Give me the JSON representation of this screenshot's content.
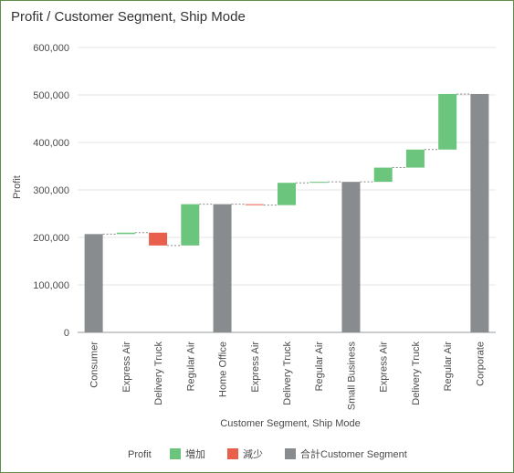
{
  "title": "Profit / Customer Segment, Ship Mode",
  "chart_data": {
    "type": "waterfall",
    "title": "Profit / Customer Segment, Ship Mode",
    "xlabel": "Customer Segment, Ship Mode",
    "ylabel": "Profit",
    "ylim": [
      0,
      600000
    ],
    "yticks": [
      0,
      100000,
      200000,
      300000,
      400000,
      500000,
      600000
    ],
    "ytick_labels": [
      "0",
      "100,000",
      "200,000",
      "300,000",
      "400,000",
      "500,000",
      "600,000"
    ],
    "grid": true,
    "legend_position": "bottom",
    "categories": [
      "Consumer",
      "Express Air",
      "Delivery Truck",
      "Regular Air",
      "Home Office",
      "Express Air",
      "Delivery Truck",
      "Regular Air",
      "Small Business",
      "Express Air",
      "Delivery Truck",
      "Regular Air",
      "Corporate"
    ],
    "steps": [
      {
        "kind": "total",
        "value": 207000
      },
      {
        "kind": "delta",
        "value": 3000
      },
      {
        "kind": "delta",
        "value": -27000
      },
      {
        "kind": "delta",
        "value": 87000
      },
      {
        "kind": "total",
        "value": 270000
      },
      {
        "kind": "delta",
        "value": -2000
      },
      {
        "kind": "delta",
        "value": 47000
      },
      {
        "kind": "delta",
        "value": 2000
      },
      {
        "kind": "total",
        "value": 317000
      },
      {
        "kind": "delta",
        "value": 30000
      },
      {
        "kind": "delta",
        "value": 38000
      },
      {
        "kind": "delta",
        "value": 117000
      },
      {
        "kind": "total",
        "value": 502000
      }
    ],
    "legend": {
      "title": "Profit",
      "items": [
        {
          "name": "増加",
          "color": "#6cc57c"
        },
        {
          "name": "減少",
          "color": "#e8604c"
        },
        {
          "name": "合計Customer Segment",
          "color": "#888c8f"
        }
      ]
    },
    "colors": {
      "increase": "#6cc57c",
      "decrease": "#e8604c",
      "total": "#888c8f"
    }
  }
}
